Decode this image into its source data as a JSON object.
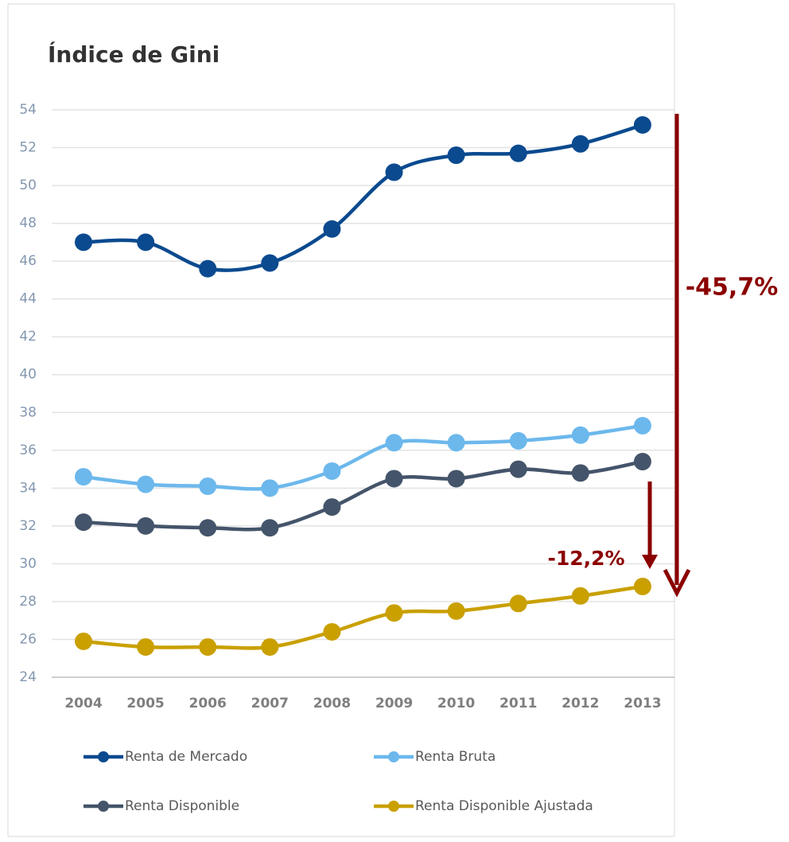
{
  "chart_data": {
    "type": "line",
    "title": "Índice de Gini",
    "x": [
      2004,
      2005,
      2006,
      2007,
      2008,
      2009,
      2010,
      2011,
      2012,
      2013
    ],
    "series": [
      {
        "name": "Renta de Mercado",
        "color": "#0b4a8f",
        "values": [
          47.0,
          47.0,
          45.6,
          45.9,
          47.7,
          50.7,
          51.6,
          51.7,
          52.2,
          53.2
        ]
      },
      {
        "name": "Renta Bruta",
        "color": "#6cb8ec",
        "values": [
          34.6,
          34.2,
          34.1,
          34.0,
          34.9,
          36.4,
          36.4,
          36.5,
          36.8,
          37.3
        ]
      },
      {
        "name": "Renta Disponible",
        "color": "#44546a",
        "values": [
          32.2,
          32.0,
          31.9,
          31.9,
          33.0,
          34.5,
          34.5,
          35.0,
          34.8,
          35.4
        ]
      },
      {
        "name": "Renta Disponible Ajustada",
        "color": "#c9a000",
        "values": [
          25.9,
          25.6,
          25.6,
          25.6,
          26.4,
          27.4,
          27.5,
          27.9,
          28.3,
          28.8
        ]
      }
    ],
    "ylim": [
      24,
      54
    ],
    "yticks": [
      24,
      26,
      28,
      30,
      32,
      34,
      36,
      38,
      40,
      42,
      44,
      46,
      48,
      50,
      52,
      54
    ],
    "grid": true,
    "smooth": true,
    "legend": "bottom",
    "annotations": [
      "-45,7%",
      "-12,2%"
    ],
    "annotation_color": "#8b0000"
  }
}
